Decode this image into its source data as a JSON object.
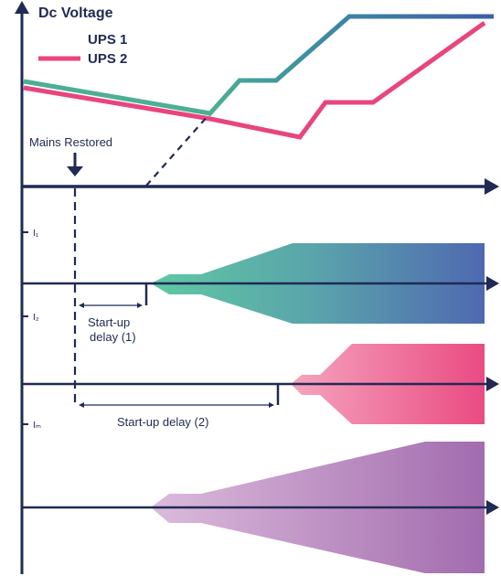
{
  "title": "Dc Voltage",
  "legend": [
    {
      "label": "UPS 1",
      "color_start": "#4caf93",
      "color_end": "#3d5fa6"
    },
    {
      "label": "UPS 2",
      "color": "#e8457f"
    }
  ],
  "annotations": {
    "mains_restored": "Mains Restored",
    "startup_delay_1_line1": "Start-up",
    "startup_delay_1_line2": "delay (1)",
    "startup_delay_2": "Start-up delay (2)"
  },
  "current_labels": {
    "i1": "I₁",
    "i2": "I₂",
    "im": "Iₘ"
  },
  "colors": {
    "axis": "#1f2a55",
    "ups1_a": "#5fc4a0",
    "ups1_b": "#4d6ab0",
    "ups2_a": "#f29ab5",
    "ups2_b": "#e8457f",
    "mains_a": "#d9b5d8",
    "mains_b": "#a06aae"
  }
}
